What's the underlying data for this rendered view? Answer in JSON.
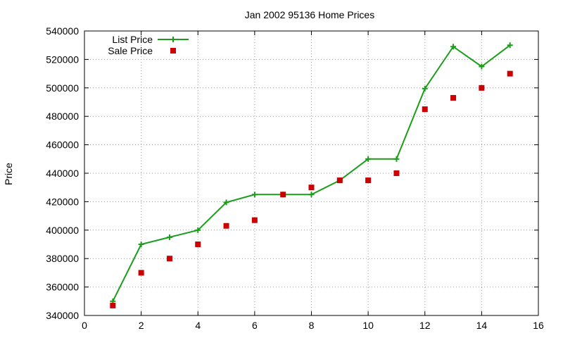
{
  "chart_data": {
    "type": "line",
    "title": "Jan 2002 95136 Home Prices",
    "xlabel": "",
    "ylabel": "Price",
    "xlim": [
      0,
      16
    ],
    "ylim": [
      340000,
      540000
    ],
    "xticks": [
      0,
      2,
      4,
      6,
      8,
      10,
      12,
      14,
      16
    ],
    "yticks": [
      340000,
      360000,
      380000,
      400000,
      420000,
      440000,
      460000,
      480000,
      500000,
      520000,
      540000
    ],
    "grid": true,
    "legend_position": "top-left",
    "series": [
      {
        "name": "List Price",
        "kind": "line",
        "color": "#1a9e1a",
        "x": [
          1,
          2,
          3,
          4,
          5,
          6,
          7,
          8,
          9,
          10,
          11,
          12,
          13,
          14,
          15
        ],
        "y": [
          350000,
          390000,
          395000,
          400000,
          419500,
          425000,
          425000,
          425000,
          435000,
          450000,
          450000,
          499500,
          529000,
          515000,
          530000
        ]
      },
      {
        "name": "Sale Price",
        "kind": "scatter",
        "color": "#cc0000",
        "x": [
          1,
          2,
          3,
          4,
          5,
          6,
          7,
          8,
          9,
          10,
          11,
          12,
          13,
          14,
          15
        ],
        "y": [
          347000,
          370000,
          380000,
          390000,
          403000,
          407000,
          425000,
          430000,
          435000,
          435000,
          440000,
          485000,
          493000,
          500000,
          510000
        ]
      }
    ]
  }
}
